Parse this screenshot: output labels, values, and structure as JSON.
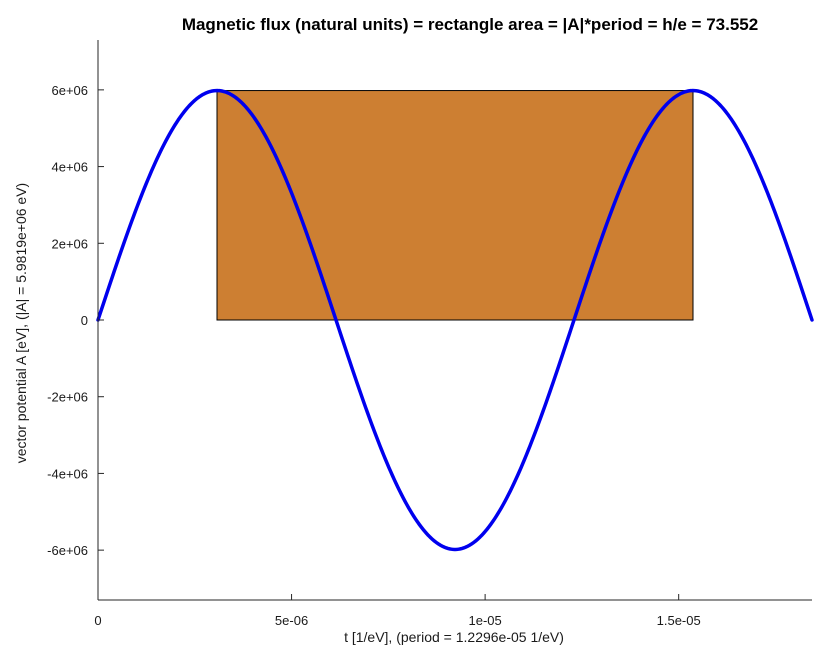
{
  "chart_data": {
    "type": "line",
    "title": "Magnetic flux (natural units) = rectangle area = |A|*period = h/e = 73.552",
    "xlabel": "t [1/eV],  (period = 1.2296e-05 1/eV)",
    "ylabel": "vector potential A [eV],  (|A| = 5.9819e+06 eV)",
    "xlim": [
      0,
      1.8444e-05
    ],
    "ylim": [
      -7300000,
      7300000
    ],
    "x_ticks": [
      {
        "value": 0,
        "label": "0"
      },
      {
        "value": 5e-06,
        "label": "5e-06"
      },
      {
        "value": 1e-05,
        "label": "1e-05"
      },
      {
        "value": 1.5e-05,
        "label": "1.5e-05"
      }
    ],
    "y_ticks": [
      {
        "value": -6000000,
        "label": "-6e+06"
      },
      {
        "value": -4000000,
        "label": "-4e+06"
      },
      {
        "value": -2000000,
        "label": "-2e+06"
      },
      {
        "value": 0,
        "label": "0"
      },
      {
        "value": 2000000,
        "label": "2e+06"
      },
      {
        "value": 4000000,
        "label": "4e+06"
      },
      {
        "value": 6000000,
        "label": "6e+06"
      }
    ],
    "grid": false,
    "series": [
      {
        "function": "sine",
        "amplitude": 5981900,
        "period": 1.2296e-05,
        "x_start": 0,
        "x_end": 1.8444e-05,
        "color": "#0000ee"
      }
    ],
    "rectangle": {
      "x0": 3.074e-06,
      "x1": 1.537e-05,
      "y0": 0,
      "y1": 5981900,
      "fill": "#cd7f32",
      "stroke": "#000000"
    }
  }
}
